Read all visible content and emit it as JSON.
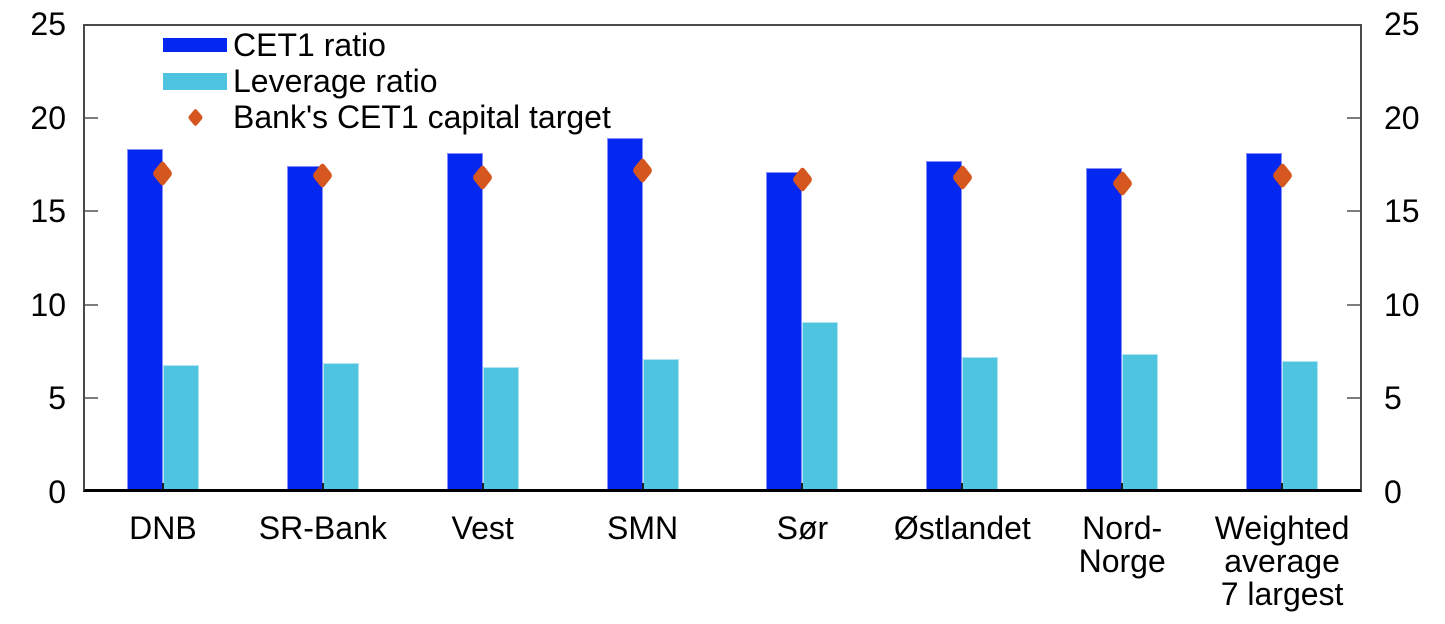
{
  "chart_data": {
    "type": "bar",
    "title": "",
    "xlabel": "",
    "ylabel": "",
    "categories": [
      [
        "DNB"
      ],
      [
        "SR-Bank"
      ],
      [
        "Vest"
      ],
      [
        "SMN"
      ],
      [
        "Sør"
      ],
      [
        "Østlandet"
      ],
      [
        "Nord-",
        "Norge"
      ],
      [
        "Weighted",
        "average",
        "7 largest"
      ]
    ],
    "series": [
      {
        "name": "CET1 ratio",
        "type": "bar",
        "color": "#0528f0",
        "values": [
          18.3,
          17.4,
          18.1,
          18.9,
          17.1,
          17.7,
          17.3,
          18.1
        ]
      },
      {
        "name": "Leverage ratio",
        "type": "bar",
        "color": "#4fc4e0",
        "values": [
          6.8,
          6.9,
          6.7,
          7.1,
          9.1,
          7.2,
          7.4,
          7.0
        ]
      },
      {
        "name": "Bank's CET1 capital target",
        "type": "scatter",
        "marker": "diamond",
        "color": "#d5571f",
        "values": [
          17.0,
          16.9,
          16.8,
          17.2,
          16.7,
          16.8,
          16.5,
          16.9
        ]
      }
    ],
    "y_axis": {
      "min": 0,
      "max": 25,
      "ticks": [
        0,
        5,
        10,
        15,
        20,
        25
      ],
      "tick_labels": [
        "0",
        "5",
        "10",
        "15",
        "20",
        "25"
      ],
      "sides": "both"
    },
    "legend_position": "top-left",
    "grid": false
  }
}
